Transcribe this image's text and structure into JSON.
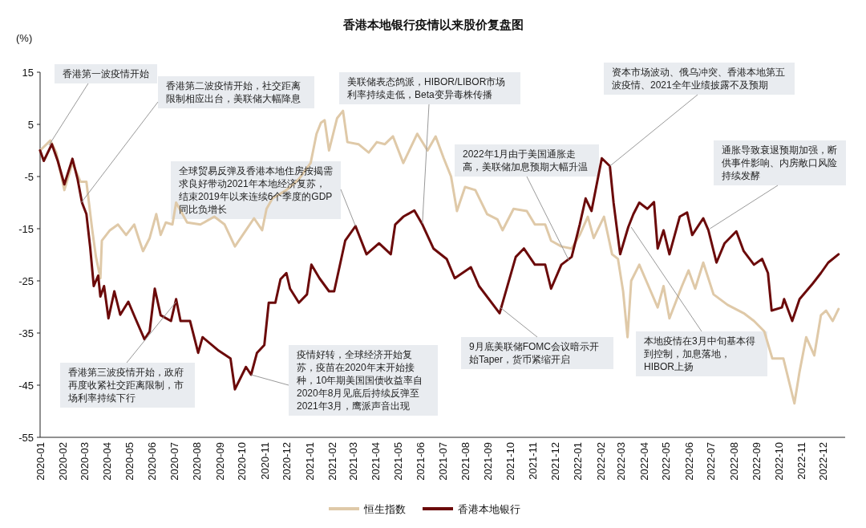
{
  "chart_data": {
    "type": "line",
    "title": "香港本地银行疫情以来股价复盘图",
    "ylabel": "(%)",
    "xlim": [
      "2020-01-01",
      "2022-12-31"
    ],
    "xticks": [
      {
        "value": "2020-01",
        "label": "2020-01"
      },
      {
        "value": "2020-02",
        "label": "2020-02"
      },
      {
        "value": "2020-03",
        "label": "2020-03"
      },
      {
        "value": "2020-04",
        "label": "2020-04"
      },
      {
        "value": "2020-05",
        "label": "2020-05"
      },
      {
        "value": "2020-06",
        "label": "2020-06"
      },
      {
        "value": "2020-07",
        "label": "2020-07"
      },
      {
        "value": "2020-08",
        "label": "2020-08"
      },
      {
        "value": "2020-09",
        "label": "2020-09"
      },
      {
        "value": "2020-10",
        "label": "2020-10"
      },
      {
        "value": "2020-11",
        "label": "2020-11"
      },
      {
        "value": "2020-12",
        "label": "2020-12"
      },
      {
        "value": "2021-01",
        "label": "2021-01"
      },
      {
        "value": "2021-02",
        "label": "2021-02"
      },
      {
        "value": "2021-03",
        "label": "2021-03"
      },
      {
        "value": "2021-04",
        "label": "2021-04"
      },
      {
        "value": "2021-05",
        "label": "2021-05"
      },
      {
        "value": "2021-06",
        "label": "2021-06"
      },
      {
        "value": "2021-07",
        "label": "2021-07"
      },
      {
        "value": "2021-08",
        "label": "2021-08"
      },
      {
        "value": "2021-09",
        "label": "2021-09"
      },
      {
        "value": "2021-10",
        "label": "2021-10"
      },
      {
        "value": "2021-11",
        "label": "2021-11"
      },
      {
        "value": "2021-12",
        "label": "2021-12"
      },
      {
        "value": "2022-01",
        "label": "2022-01"
      },
      {
        "value": "2022-02",
        "label": "2022-02"
      },
      {
        "value": "2022-03",
        "label": "2022-03"
      },
      {
        "value": "2022-04",
        "label": "2022-04"
      },
      {
        "value": "2022-05",
        "label": "2022-05"
      },
      {
        "value": "2022-06",
        "label": "2022-06"
      },
      {
        "value": "2022-07",
        "label": "2022-07"
      },
      {
        "value": "2022-08",
        "label": "2022-08"
      },
      {
        "value": "2022-09",
        "label": "2022-09"
      },
      {
        "value": "2022-10",
        "label": "2022-10"
      },
      {
        "value": "2022-11",
        "label": "2022-11"
      },
      {
        "value": "2022-12",
        "label": "2022-12"
      }
    ],
    "ylim": [
      -55,
      15
    ],
    "yticks": [
      -55,
      -45,
      -35,
      -25,
      -15,
      -5,
      5,
      15
    ],
    "grid": false,
    "legend": "bottom",
    "line_style": "solid",
    "series": [
      {
        "name": "恒生指数",
        "color": "#dfc9a8",
        "x": [
          "2020-01-01",
          "2020-01-15",
          "2020-01-23",
          "2020-02-03",
          "2020-02-14",
          "2020-02-25",
          "2020-03-04",
          "2020-03-12",
          "2020-03-17",
          "2020-03-23",
          "2020-03-25",
          "2020-04-05",
          "2020-04-16",
          "2020-04-27",
          "2020-05-08",
          "2020-05-14",
          "2020-05-20",
          "2020-05-29",
          "2020-06-07",
          "2020-06-13",
          "2020-06-20",
          "2020-06-29",
          "2020-07-04",
          "2020-07-19",
          "2020-08-06",
          "2020-08-25",
          "2020-09-08",
          "2020-09-22",
          "2020-10-07",
          "2020-10-18",
          "2020-10-29",
          "2020-11-04",
          "2020-11-12",
          "2020-12-01",
          "2020-12-18",
          "2021-01-03",
          "2021-01-11",
          "2021-01-17",
          "2021-01-22",
          "2021-01-28",
          "2021-02-08",
          "2021-02-16",
          "2021-02-22",
          "2021-03-09",
          "2021-03-23",
          "2021-04-03",
          "2021-04-14",
          "2021-04-25",
          "2021-05-09",
          "2021-05-28",
          "2021-06-11",
          "2021-06-22",
          "2021-07-03",
          "2021-07-13",
          "2021-07-21",
          "2021-08-01",
          "2021-08-15",
          "2021-08-31",
          "2021-09-14",
          "2021-09-21",
          "2021-10-06",
          "2021-10-24",
          "2021-11-04",
          "2021-11-18",
          "2021-11-26",
          "2021-12-10",
          "2021-12-24",
          "2022-01-04",
          "2022-01-15",
          "2022-01-23",
          "2022-02-06",
          "2022-02-17",
          "2022-02-25",
          "2022-03-04",
          "2022-03-10",
          "2022-03-15",
          "2022-03-26",
          "2022-04-06",
          "2022-04-20",
          "2022-04-28",
          "2022-05-06",
          "2022-05-23",
          "2022-06-01",
          "2022-06-10",
          "2022-06-21",
          "2022-07-05",
          "2022-07-24",
          "2022-08-15",
          "2022-08-29",
          "2022-09-12",
          "2022-09-23",
          "2022-10-08",
          "2022-10-23",
          "2022-10-30",
          "2022-11-08",
          "2022-11-19",
          "2022-11-28",
          "2022-12-05",
          "2022-12-14",
          "2022-12-22"
        ],
        "values": [
          0,
          1.9,
          -0.4,
          -7.6,
          -2.4,
          -6,
          -6,
          -15.3,
          -20.4,
          -24.5,
          -17.3,
          -15.3,
          -14.2,
          -16.2,
          -14.2,
          -16.8,
          -19.3,
          -16.8,
          -12.2,
          -16.2,
          -13.8,
          -14.2,
          -10,
          -13.8,
          -14.2,
          -12.7,
          -14.2,
          -18.4,
          -15.3,
          -13,
          -15.3,
          -11.2,
          -9.2,
          -7.6,
          -5.5,
          -2.4,
          3.2,
          5.3,
          5.8,
          0,
          6.2,
          7.6,
          1.6,
          1.2,
          -0.4,
          1.6,
          1.2,
          2.7,
          -2.4,
          3.2,
          0,
          2.7,
          -1.5,
          -5,
          -11.6,
          -7,
          -7.6,
          -12.2,
          -13.2,
          -15.3,
          -11.2,
          -11.6,
          -14.2,
          -14.2,
          -17.3,
          -18.4,
          -18.8,
          -16.2,
          -12.7,
          -16.8,
          -12.7,
          -19.9,
          -20.8,
          -27,
          -35.8,
          -25,
          -21.9,
          -25.5,
          -30.1,
          -26,
          -32.2,
          -26,
          -23,
          -26.5,
          -21.5,
          -27.6,
          -29.6,
          -31.2,
          -32.7,
          -34.7,
          -39.9,
          -39.9,
          -48.5,
          -42.4,
          -35.8,
          -39.3,
          -31.6,
          -30.7,
          -32.7,
          -30.4
        ]
      },
      {
        "name": "香港本地银行",
        "color": "#6b0a0a",
        "x": [
          "2020-01-01",
          "2020-01-06",
          "2020-01-17",
          "2020-01-25",
          "2020-02-03",
          "2020-02-14",
          "2020-02-21",
          "2020-02-27",
          "2020-03-04",
          "2020-03-09",
          "2020-03-14",
          "2020-03-20",
          "2020-03-23",
          "2020-03-28",
          "2020-04-03",
          "2020-04-11",
          "2020-04-19",
          "2020-04-30",
          "2020-05-09",
          "2020-05-22",
          "2020-05-29",
          "2020-06-05",
          "2020-06-13",
          "2020-06-27",
          "2020-07-04",
          "2020-07-10",
          "2020-07-23",
          "2020-08-03",
          "2020-08-09",
          "2020-08-31",
          "2020-09-16",
          "2020-09-22",
          "2020-10-07",
          "2020-10-14",
          "2020-10-22",
          "2020-11-01",
          "2020-11-07",
          "2020-11-16",
          "2020-11-23",
          "2020-12-01",
          "2020-12-06",
          "2020-12-18",
          "2020-12-29",
          "2021-01-04",
          "2021-01-15",
          "2021-01-28",
          "2021-02-04",
          "2021-02-19",
          "2021-03-05",
          "2021-03-20",
          "2021-04-06",
          "2021-04-22",
          "2021-04-28",
          "2021-05-09",
          "2021-05-24",
          "2021-06-04",
          "2021-06-19",
          "2021-07-07",
          "2021-07-18",
          "2021-08-09",
          "2021-08-20",
          "2021-09-17",
          "2021-10-09",
          "2021-10-20",
          "2021-11-04",
          "2021-11-18",
          "2021-11-26",
          "2021-12-10",
          "2021-12-24",
          "2022-01-04",
          "2022-01-12",
          "2022-01-20",
          "2022-02-03",
          "2022-02-14",
          "2022-02-19",
          "2022-02-28",
          "2022-03-11",
          "2022-03-18",
          "2022-03-26",
          "2022-04-06",
          "2022-04-15",
          "2022-04-20",
          "2022-04-28",
          "2022-05-06",
          "2022-05-20",
          "2022-05-30",
          "2022-06-06",
          "2022-06-21",
          "2022-06-28",
          "2022-07-09",
          "2022-07-20",
          "2022-08-05",
          "2022-08-15",
          "2022-08-29",
          "2022-09-09",
          "2022-09-17",
          "2022-09-22",
          "2022-10-06",
          "2022-10-09",
          "2022-10-20",
          "2022-10-30",
          "2022-11-17",
          "2022-11-28",
          "2022-12-08",
          "2022-12-22"
        ],
        "values": [
          0,
          -2,
          1.2,
          -2,
          -6.5,
          -1.6,
          -5.5,
          -10,
          -12.2,
          -18.4,
          -26,
          -24,
          -28,
          -26,
          -32.2,
          -27,
          -31.5,
          -29,
          -32,
          -36.2,
          -34.7,
          -26.5,
          -31.6,
          -32.7,
          -28.5,
          -32.7,
          -32.7,
          -38.8,
          -35.8,
          -38.4,
          -39.9,
          -45.8,
          -41.5,
          -43,
          -38.8,
          -37.3,
          -29.2,
          -29.2,
          -24.7,
          -23.5,
          -26.5,
          -29.2,
          -27.6,
          -21.9,
          -24.5,
          -27,
          -27,
          -17.3,
          -14.5,
          -19.9,
          -17.8,
          -19.9,
          -14.2,
          -12.7,
          -11.5,
          -14.2,
          -18.8,
          -20.8,
          -24.5,
          -22.4,
          -26,
          -31.2,
          -20.4,
          -18.8,
          -21.9,
          -21.9,
          -26.5,
          -21.9,
          -20.4,
          -14.2,
          -9.2,
          -11.6,
          -1.5,
          -3,
          -10,
          -19.9,
          -14.7,
          -12.2,
          -10,
          -11.2,
          -9.9,
          -18.8,
          -15.3,
          -19.9,
          -12.7,
          -11.9,
          -16.2,
          -13,
          -15.3,
          -21.5,
          -17.8,
          -15.5,
          -19.3,
          -21.9,
          -20.8,
          -23.5,
          -30.7,
          -30.1,
          -28.5,
          -32.7,
          -28.5,
          -25.5,
          -23.5,
          -21.5,
          -19.9
        ]
      }
    ],
    "annotations": [
      {
        "text": "香港第一波疫情开始",
        "x": "2020-01-13",
        "y": 1
      },
      {
        "text": "香港第二波疫情开始，社交距离限制相应出台，美联储大幅降息",
        "x": "2020-02-26",
        "y": -10
      },
      {
        "text": "全球贸易反弹及香港本地住房按揭需求良好带动2021年本地经济复苏，结束2019年以来连续6个季度的GDP同比负增长",
        "x": "2021-03-05",
        "y": -14.5
      },
      {
        "text": "美联储表态鸽派，HIBOR/LIBOR市场利率持续走低，Beta变异毒株传播",
        "x": "2021-06-04",
        "y": -14
      },
      {
        "text": "2022年1月由于美国通胀走高，美联储加息预期大幅升温",
        "x": "2021-12-20",
        "y": -21
      },
      {
        "text": "资本市场波动、俄乌冲突、香港本地第五波疫情、2021全年业绩披露不及预期",
        "x": "2022-02-14",
        "y": -3
      },
      {
        "text": "通胀导致衰退预期加强，断供事件影响、内房敞口风险持续发酵",
        "x": "2022-06-30",
        "y": -15
      },
      {
        "text": "本地疫情在3月中旬基本得到控制，加息落地，HIBOR上扬",
        "x": "2022-03-15",
        "y": -14.7
      },
      {
        "text": "9月底美联储FOMC会议暗示开始Taper，货币紧缩开启",
        "x": "2021-09-17",
        "y": -30
      },
      {
        "text": "疫情好转，全球经济开始复苏，疫苗在2020年末开始接种，10年期美国国债收益率自2020年8月见底后持续反弹至2021年3月，鹰派声音出现",
        "x": "2020-10-14",
        "y": -43
      },
      {
        "text": "香港第三波疫情开始，政府再度收紧社交距离限制，市场利率持续下行",
        "x": "2020-07-04",
        "y": -29
      }
    ]
  }
}
